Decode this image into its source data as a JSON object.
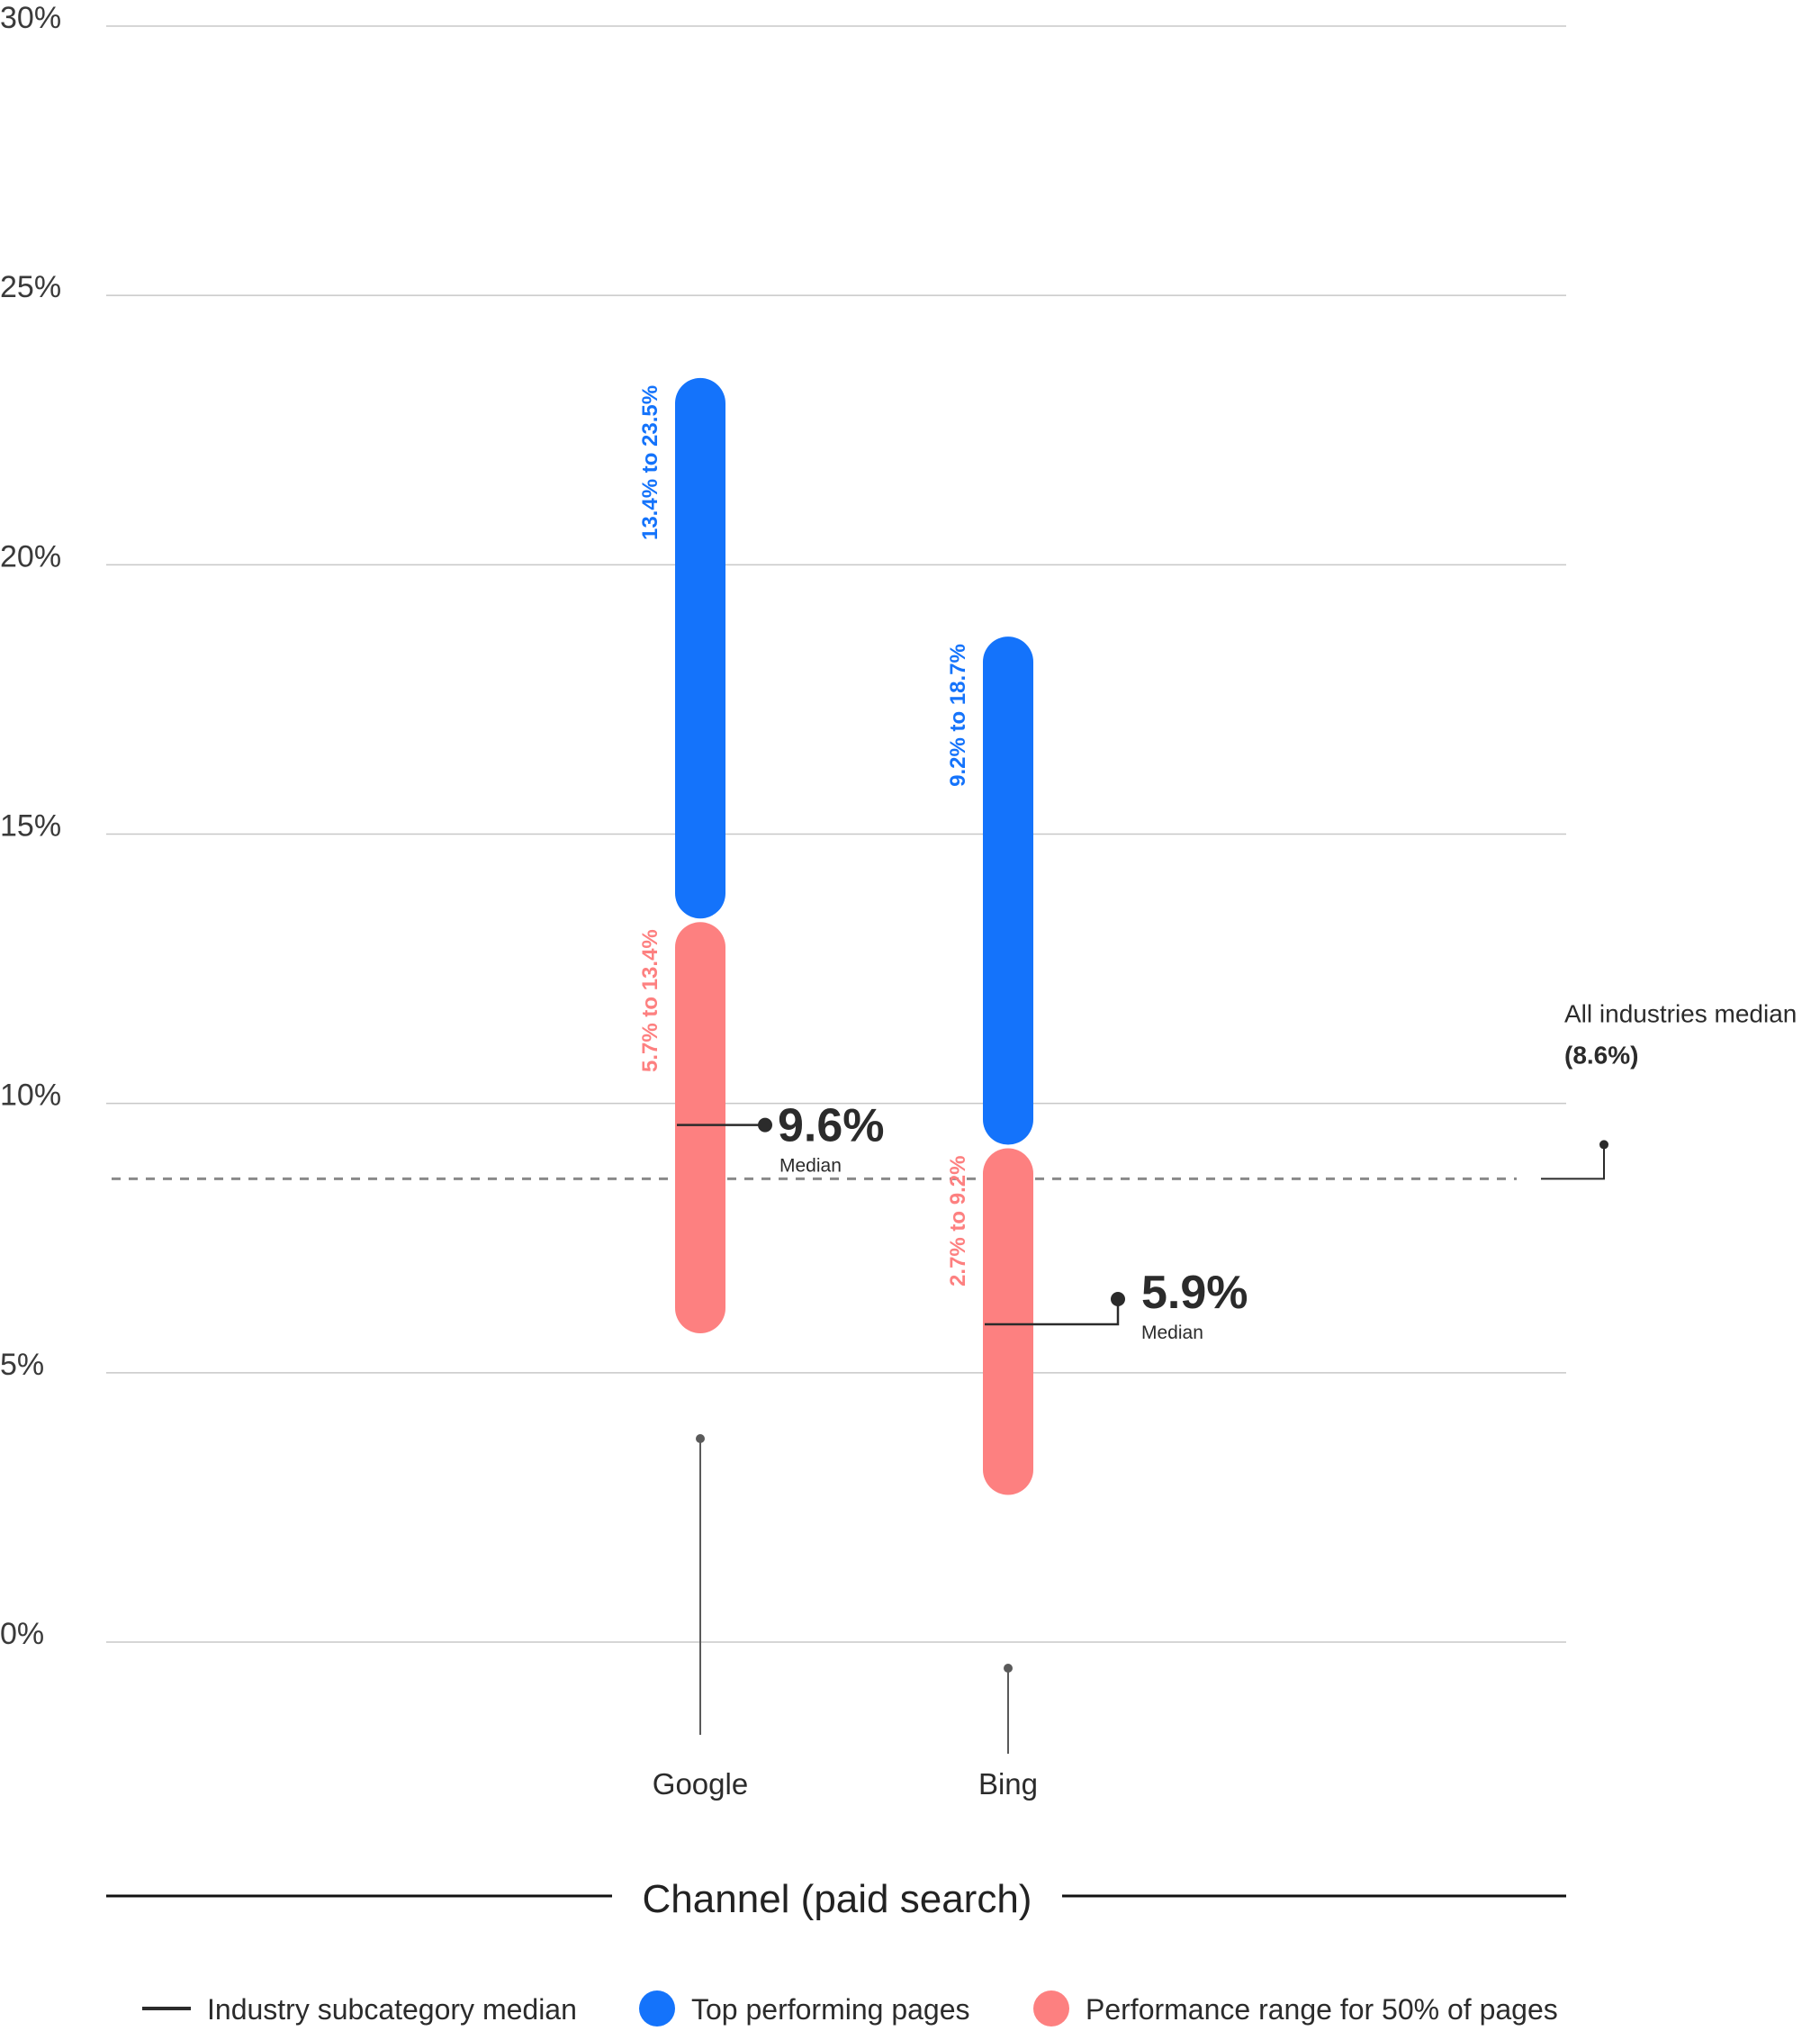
{
  "chart_data": {
    "type": "range",
    "categories": [
      "Google",
      "Bing"
    ],
    "yticks": [
      "0%",
      "5%",
      "10%",
      "15%",
      "20%",
      "25%",
      "30%"
    ],
    "ylim": [
      0,
      30
    ],
    "grid": true,
    "xlabel": "Channel (paid search)",
    "series": [
      {
        "name": "Top performing pages",
        "color": "#1473fb",
        "ranges": [
          {
            "category": "Google",
            "low": 13.4,
            "high": 23.5,
            "label": "13.4% to 23.5%"
          },
          {
            "category": "Bing",
            "low": 9.2,
            "high": 18.7,
            "label": "9.2% to 18.7%"
          }
        ]
      },
      {
        "name": "Performance range for 50% of pages",
        "color": "#fd8080",
        "ranges": [
          {
            "category": "Google",
            "low": 5.7,
            "high": 13.4,
            "label": "5.7% to 13.4%"
          },
          {
            "category": "Bing",
            "low": 2.7,
            "high": 9.2,
            "label": "2.7% to 9.2%"
          }
        ]
      }
    ],
    "medians": [
      {
        "category": "Google",
        "value": 9.6,
        "label": "9.6%",
        "caption": "Median"
      },
      {
        "category": "Bing",
        "value": 5.9,
        "label": "5.9%",
        "caption": "Median"
      }
    ],
    "reference_line": {
      "value": 8.6,
      "title": "All industries median",
      "label": "(8.6%)",
      "style": "dashed",
      "color": "#8a8a8a"
    },
    "legend": {
      "placement": "bottom",
      "items": [
        {
          "label": "Industry subcategory median",
          "marker": "line",
          "color": "#2b2b2b"
        },
        {
          "label": "Top performing pages",
          "marker": "circle",
          "color": "#1473fb"
        },
        {
          "label": "Performance range for 50% of pages",
          "marker": "circle",
          "color": "#fd8080"
        }
      ]
    }
  }
}
